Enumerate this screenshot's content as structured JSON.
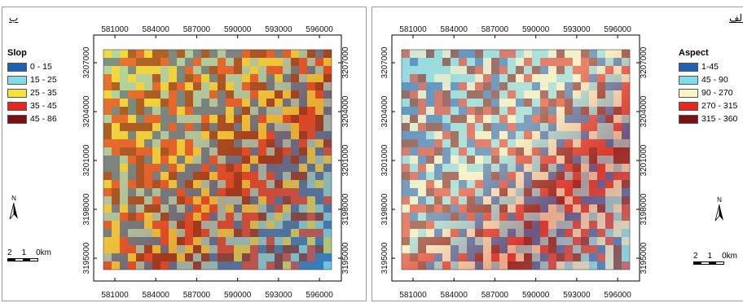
{
  "figure_letters": {
    "left": "ب",
    "right": "الف"
  },
  "slope_map": {
    "legend_title": "Slop",
    "legend": [
      {
        "label": "0 - 15",
        "color": "#1f5fb4"
      },
      {
        "label": "15 - 25",
        "color": "#83dbe8"
      },
      {
        "label": "25 - 35",
        "color": "#f4e13a"
      },
      {
        "label": "35 - 45",
        "color": "#e2281f"
      },
      {
        "label": "45 - 86",
        "color": "#7a1010"
      }
    ],
    "x_ticks": [
      "581000",
      "584000",
      "587000",
      "590000",
      "593000",
      "596000"
    ],
    "y_ticks": [
      "3207000",
      "3204000",
      "3201000",
      "3198000",
      "3195000"
    ]
  },
  "aspect_map": {
    "legend_title": "Aspect",
    "legend": [
      {
        "label": "1-45",
        "color": "#1f5fb4"
      },
      {
        "label": "45 - 90",
        "color": "#83dbe8"
      },
      {
        "label": "90 - 270",
        "color": "#fbf4c8"
      },
      {
        "label": "270 - 315",
        "color": "#e2281f"
      },
      {
        "label": "315 - 360",
        "color": "#7a1010"
      }
    ],
    "x_ticks": [
      "581000",
      "584000",
      "587000",
      "590000",
      "593000",
      "596000"
    ],
    "y_ticks": [
      "3207000",
      "3204000",
      "3201000",
      "3198000",
      "3195000"
    ]
  },
  "north_label": "N",
  "scale_labels": [
    "2",
    "1",
    "0km"
  ]
}
